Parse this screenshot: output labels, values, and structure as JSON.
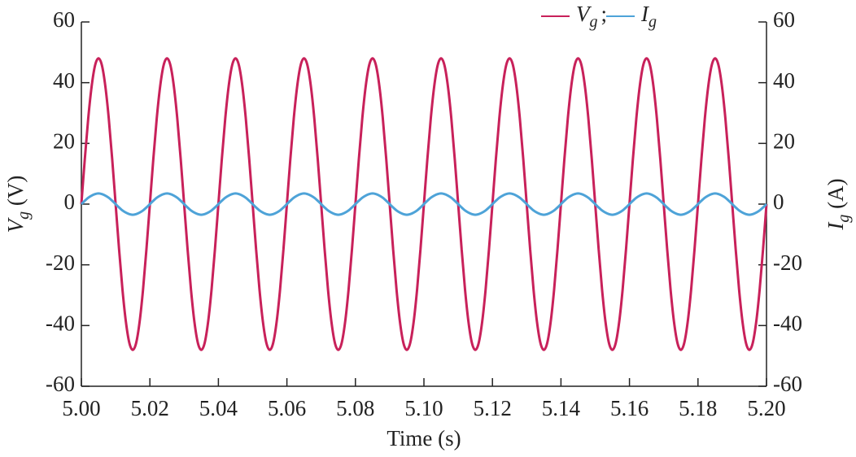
{
  "chart_data": {
    "type": "line",
    "xlabel": "Time (s)",
    "ylabel": {
      "symbol": "V",
      "subscript": "g",
      "unit": " (V)"
    },
    "y2label": {
      "symbol": "I",
      "subscript": "g",
      "unit": " (A)"
    },
    "legend_separator": ";",
    "legend": "upper right",
    "xlim": [
      5,
      5.2
    ],
    "xticks": [
      {
        "value": 5,
        "label": "5.00"
      },
      5.02,
      5.04,
      5.06,
      5.08,
      {
        "value": 5.1,
        "label": "5.10"
      },
      5.12,
      5.14,
      5.16,
      5.18,
      {
        "value": 5.2,
        "label": "5.20"
      }
    ],
    "ylim": [
      -60,
      60
    ],
    "yticks": [
      -60,
      -40,
      -20,
      0,
      20,
      40,
      60
    ],
    "y2lim": [
      -60,
      60
    ],
    "y2ticks": [
      -60,
      -40,
      -20,
      0,
      20,
      40,
      60
    ],
    "x": [
      5,
      5.001,
      5.002,
      5.003,
      5.004,
      5.005,
      5.006,
      5.007,
      5.008,
      5.009,
      5.01,
      5.011,
      5.012,
      5.013,
      5.014,
      5.015,
      5.016,
      5.017,
      5.018,
      5.019,
      5.02,
      5.021,
      5.022,
      5.023,
      5.024,
      5.025,
      5.026,
      5.027,
      5.028,
      5.029,
      5.03,
      5.031,
      5.032,
      5.033,
      5.034,
      5.035,
      5.036,
      5.037,
      5.038,
      5.039,
      5.04,
      5.041,
      5.042,
      5.043,
      5.044,
      5.045,
      5.046,
      5.047,
      5.048,
      5.049,
      5.05,
      5.051,
      5.052,
      5.053,
      5.054,
      5.055,
      5.056,
      5.057,
      5.058,
      5.059,
      5.06,
      5.061,
      5.062,
      5.063,
      5.064,
      5.065,
      5.066,
      5.067,
      5.068,
      5.069,
      5.07,
      5.071,
      5.072,
      5.073,
      5.074,
      5.075,
      5.076,
      5.077,
      5.078,
      5.079,
      5.08,
      5.081,
      5.082,
      5.083,
      5.084,
      5.085,
      5.086,
      5.087,
      5.088,
      5.089,
      5.09,
      5.091,
      5.092,
      5.093,
      5.094,
      5.095,
      5.096,
      5.097,
      5.098,
      5.099,
      5.1,
      5.101,
      5.102,
      5.103,
      5.104,
      5.105,
      5.106,
      5.107,
      5.108,
      5.109,
      5.11,
      5.111,
      5.112,
      5.113,
      5.114,
      5.115,
      5.116,
      5.117,
      5.118,
      5.119,
      5.12,
      5.121,
      5.122,
      5.123,
      5.124,
      5.125,
      5.126,
      5.127,
      5.128,
      5.129,
      5.13,
      5.131,
      5.132,
      5.133,
      5.134,
      5.135,
      5.136,
      5.137,
      5.138,
      5.139,
      5.14,
      5.141,
      5.142,
      5.143,
      5.144,
      5.145,
      5.146,
      5.147,
      5.148,
      5.149,
      5.15,
      5.151,
      5.152,
      5.153,
      5.154,
      5.155,
      5.156,
      5.157,
      5.158,
      5.159,
      5.16,
      5.161,
      5.162,
      5.163,
      5.164,
      5.165,
      5.166,
      5.167,
      5.168,
      5.169,
      5.17,
      5.171,
      5.172,
      5.173,
      5.174,
      5.175,
      5.176,
      5.177,
      5.178,
      5.179,
      5.18,
      5.181,
      5.182,
      5.183,
      5.184,
      5.185,
      5.186,
      5.187,
      5.188,
      5.189,
      5.19,
      5.191,
      5.192,
      5.193,
      5.194,
      5.195,
      5.196,
      5.197,
      5.198,
      5.199,
      5.2
    ],
    "series": [
      {
        "name": "V",
        "subscript": "g",
        "color": "#c8215a",
        "values": [
          0,
          14.8,
          28.2,
          38.8,
          45.7,
          48,
          45.7,
          38.8,
          28.2,
          14.8,
          0,
          -14.8,
          -28.2,
          -38.8,
          -45.7,
          -48,
          -45.7,
          -38.8,
          -28.2,
          -14.8,
          0,
          14.8,
          28.2,
          38.8,
          45.7,
          48,
          45.7,
          38.8,
          28.2,
          14.8,
          0,
          -14.8,
          -28.2,
          -38.8,
          -45.7,
          -48,
          -45.7,
          -38.8,
          -28.2,
          -14.8,
          0,
          14.8,
          28.2,
          38.8,
          45.7,
          48,
          45.7,
          38.8,
          28.2,
          14.8,
          0,
          -14.8,
          -28.2,
          -38.8,
          -45.7,
          -48,
          -45.7,
          -38.8,
          -28.2,
          -14.8,
          0,
          14.8,
          28.2,
          38.8,
          45.7,
          48,
          45.7,
          38.8,
          28.2,
          14.8,
          0,
          -14.8,
          -28.2,
          -38.8,
          -45.7,
          -48,
          -45.7,
          -38.8,
          -28.2,
          -14.8,
          0,
          14.8,
          28.2,
          38.8,
          45.7,
          48,
          45.7,
          38.8,
          28.2,
          14.8,
          0,
          -14.8,
          -28.2,
          -38.8,
          -45.7,
          -48,
          -45.7,
          -38.8,
          -28.2,
          -14.8,
          0,
          14.8,
          28.2,
          38.8,
          45.7,
          48,
          45.7,
          38.8,
          28.2,
          14.8,
          0,
          -14.8,
          -28.2,
          -38.8,
          -45.7,
          -48,
          -45.7,
          -38.8,
          -28.2,
          -14.8,
          0,
          14.8,
          28.2,
          38.8,
          45.7,
          48,
          45.7,
          38.8,
          28.2,
          14.8,
          0,
          -14.8,
          -28.2,
          -38.8,
          -45.7,
          -48,
          -45.7,
          -38.8,
          -28.2,
          -14.8,
          0,
          14.8,
          28.2,
          38.8,
          45.7,
          48,
          45.7,
          38.8,
          28.2,
          14.8,
          0,
          -14.8,
          -28.2,
          -38.8,
          -45.7,
          -48,
          -45.7,
          -38.8,
          -28.2,
          -14.8,
          0,
          14.8,
          28.2,
          38.8,
          45.7,
          48,
          45.7,
          38.8,
          28.2,
          14.8,
          0,
          -14.8,
          -28.2,
          -38.8,
          -45.7,
          -48,
          -45.7,
          -38.8,
          -28.2,
          -14.8,
          0,
          14.8,
          28.2,
          38.8,
          45.7,
          48,
          45.7,
          38.8,
          28.2,
          14.8,
          0,
          -14.8,
          -28.2,
          -38.8,
          -45.7,
          -48,
          -45.7,
          -38.8,
          -28.2,
          -14.8,
          0
        ]
      },
      {
        "name": "I",
        "subscript": "g",
        "color": "#4ea3d8",
        "axis": "y2",
        "values": [
          0,
          1.1,
          2.1,
          2.8,
          3.3,
          3.5,
          3.3,
          2.8,
          2.1,
          1.1,
          0,
          -1.1,
          -2.1,
          -2.8,
          -3.3,
          -3.5,
          -3.3,
          -2.8,
          -2.1,
          -1.1,
          0,
          1.1,
          2.1,
          2.8,
          3.3,
          3.5,
          3.3,
          2.8,
          2.1,
          1.1,
          0,
          -1.1,
          -2.1,
          -2.8,
          -3.3,
          -3.5,
          -3.3,
          -2.8,
          -2.1,
          -1.1,
          0,
          1.1,
          2.1,
          2.8,
          3.3,
          3.5,
          3.3,
          2.8,
          2.1,
          1.1,
          0,
          -1.1,
          -2.1,
          -2.8,
          -3.3,
          -3.5,
          -3.3,
          -2.8,
          -2.1,
          -1.1,
          0,
          1.1,
          2.1,
          2.8,
          3.3,
          3.5,
          3.3,
          2.8,
          2.1,
          1.1,
          0,
          -1.1,
          -2.1,
          -2.8,
          -3.3,
          -3.5,
          -3.3,
          -2.8,
          -2.1,
          -1.1,
          0,
          1.1,
          2.1,
          2.8,
          3.3,
          3.5,
          3.3,
          2.8,
          2.1,
          1.1,
          0,
          -1.1,
          -2.1,
          -2.8,
          -3.3,
          -3.5,
          -3.3,
          -2.8,
          -2.1,
          -1.1,
          0,
          1.1,
          2.1,
          2.8,
          3.3,
          3.5,
          3.3,
          2.8,
          2.1,
          1.1,
          0,
          -1.1,
          -2.1,
          -2.8,
          -3.3,
          -3.5,
          -3.3,
          -2.8,
          -2.1,
          -1.1,
          0,
          1.1,
          2.1,
          2.8,
          3.3,
          3.5,
          3.3,
          2.8,
          2.1,
          1.1,
          0,
          -1.1,
          -2.1,
          -2.8,
          -3.3,
          -3.5,
          -3.3,
          -2.8,
          -2.1,
          -1.1,
          0,
          1.1,
          2.1,
          2.8,
          3.3,
          3.5,
          3.3,
          2.8,
          2.1,
          1.1,
          0,
          -1.1,
          -2.1,
          -2.8,
          -3.3,
          -3.5,
          -3.3,
          -2.8,
          -2.1,
          -1.1,
          0,
          1.1,
          2.1,
          2.8,
          3.3,
          3.5,
          3.3,
          2.8,
          2.1,
          1.1,
          0,
          -1.1,
          -2.1,
          -2.8,
          -3.3,
          -3.5,
          -3.3,
          -2.8,
          -2.1,
          -1.1,
          0,
          1.1,
          2.1,
          2.8,
          3.3,
          3.5,
          3.3,
          2.8,
          2.1,
          1.1,
          0,
          -1.1,
          -2.1,
          -2.8,
          -3.3,
          -3.5,
          -3.3,
          -2.8,
          -2.1,
          -1.1,
          0
        ]
      }
    ]
  }
}
